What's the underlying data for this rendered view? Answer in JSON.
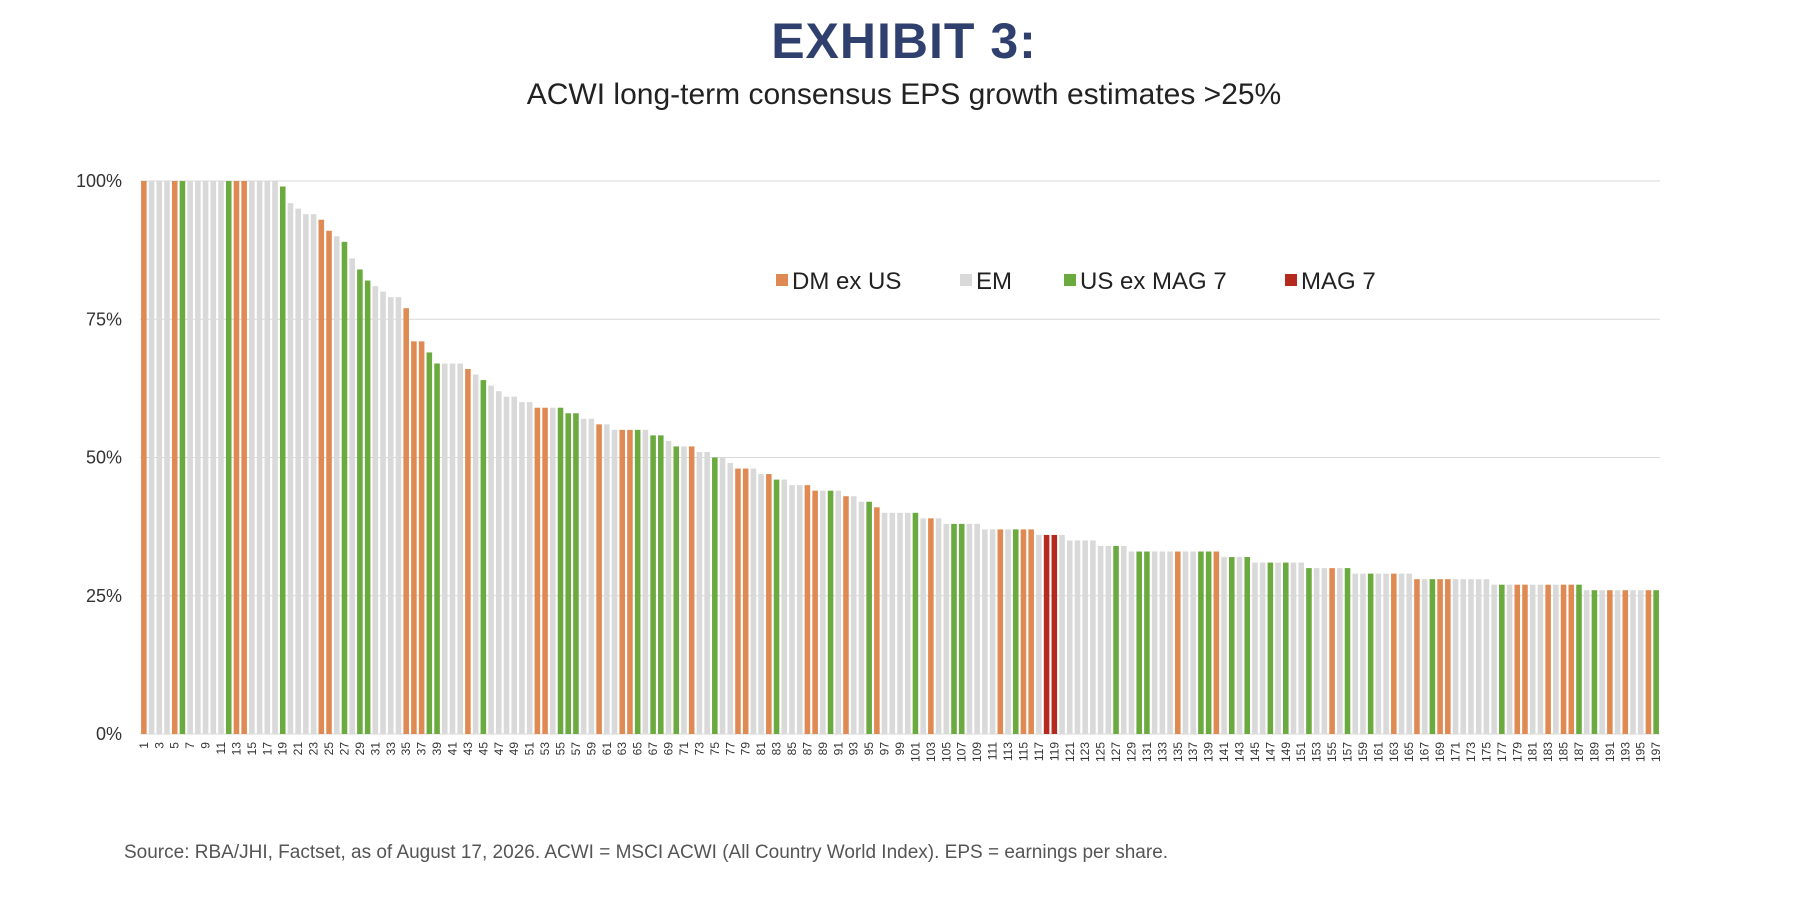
{
  "exhibit_title": "EXHIBIT 3:",
  "subtitle": "ACWI long-term consensus EPS growth estimates >25%",
  "source": "Source: RBA/JHI, Factset, as of August 17, 2026. ACWI = MSCI ACWI (All Country World Index). EPS = earnings per share.",
  "colors": {
    "DM ex US": "#e08a53",
    "EM": "#d9d9d9",
    "US ex MAG 7": "#6aaa3e",
    "MAG 7": "#b52a1e",
    "gridline": "#d9d9d9"
  },
  "chart_data": {
    "type": "bar",
    "title": "ACWI long-term consensus EPS growth estimates >25%",
    "xlabel": "",
    "ylabel": "",
    "ylim": [
      0,
      100
    ],
    "y_ticks": [
      "0%",
      "25%",
      "50%",
      "75%",
      "100%"
    ],
    "y_tick_values": [
      0,
      25,
      50,
      75,
      100
    ],
    "legend_placement": "top-center inside plot",
    "legend": [
      "DM ex US",
      "EM",
      "US ex MAG 7",
      "MAG 7"
    ],
    "x_tick_labels": [
      1,
      3,
      5,
      7,
      9,
      11,
      13,
      15,
      17,
      19,
      21,
      23,
      25,
      27,
      29,
      31,
      33,
      35,
      37,
      39,
      41,
      43,
      45,
      47,
      49,
      51,
      53,
      55,
      57,
      59,
      61,
      63,
      65,
      67,
      69,
      71,
      73,
      75,
      77,
      79,
      81,
      83,
      85,
      87,
      89,
      91,
      93,
      95,
      97,
      99,
      101,
      103,
      105,
      107,
      109,
      111,
      113,
      115,
      117,
      119,
      121,
      123,
      125,
      127,
      129,
      131,
      133,
      135,
      137,
      139,
      141,
      143,
      145,
      147,
      149,
      151,
      153,
      155,
      157,
      159,
      161,
      163,
      165,
      167,
      169,
      171,
      173,
      175,
      177,
      179,
      181,
      183,
      185,
      187,
      189,
      191,
      193,
      195,
      197
    ],
    "categories": [
      1,
      2,
      3,
      4,
      5,
      6,
      7,
      8,
      9,
      10,
      11,
      12,
      13,
      14,
      15,
      16,
      17,
      18,
      19,
      20,
      21,
      22,
      23,
      24,
      25,
      26,
      27,
      28,
      29,
      30,
      31,
      32,
      33,
      34,
      35,
      36,
      37,
      38,
      39,
      40,
      41,
      42,
      43,
      44,
      45,
      46,
      47,
      48,
      49,
      50,
      51,
      52,
      53,
      54,
      55,
      56,
      57,
      58,
      59,
      60,
      61,
      62,
      63,
      64,
      65,
      66,
      67,
      68,
      69,
      70,
      71,
      72,
      73,
      74,
      75,
      76,
      77,
      78,
      79,
      80,
      81,
      82,
      83,
      84,
      85,
      86,
      87,
      88,
      89,
      90,
      91,
      92,
      93,
      94,
      95,
      96,
      97,
      98,
      99,
      100,
      101,
      102,
      103,
      104,
      105,
      106,
      107,
      108,
      109,
      110,
      111,
      112,
      113,
      114,
      115,
      116,
      117,
      118,
      119,
      120,
      121,
      122,
      123,
      124,
      125,
      126,
      127,
      128,
      129,
      130,
      131,
      132,
      133,
      134,
      135,
      136,
      137,
      138,
      139,
      140,
      141,
      142,
      143,
      144,
      145,
      146,
      147,
      148,
      149,
      150,
      151,
      152,
      153,
      154,
      155,
      156,
      157,
      158,
      159,
      160,
      161,
      162,
      163,
      164,
      165,
      166,
      167,
      168,
      169,
      170,
      171,
      172,
      173,
      174,
      175,
      176,
      177,
      178,
      179,
      180,
      181,
      182,
      183,
      184,
      185,
      186,
      187,
      188,
      189,
      190,
      191,
      192,
      193,
      194,
      195,
      196,
      197
    ],
    "values": [
      100,
      100,
      100,
      100,
      100,
      100,
      100,
      100,
      100,
      100,
      100,
      100,
      100,
      100,
      100,
      100,
      100,
      100,
      99,
      96,
      95,
      94,
      94,
      93,
      91,
      90,
      89,
      86,
      84,
      82,
      81,
      80,
      79,
      79,
      77,
      71,
      71,
      69,
      67,
      67,
      67,
      67,
      66,
      65,
      64,
      63,
      62,
      61,
      61,
      60,
      60,
      59,
      59,
      59,
      59,
      58,
      58,
      57,
      57,
      56,
      56,
      55,
      55,
      55,
      55,
      55,
      54,
      54,
      53,
      52,
      52,
      52,
      51,
      51,
      50,
      50,
      49,
      48,
      48,
      48,
      47,
      47,
      46,
      46,
      45,
      45,
      45,
      44,
      44,
      44,
      44,
      43,
      43,
      42,
      42,
      41,
      40,
      40,
      40,
      40,
      40,
      39,
      39,
      39,
      38,
      38,
      38,
      38,
      38,
      37,
      37,
      37,
      37,
      37,
      37,
      37,
      36,
      36,
      36,
      36,
      35,
      35,
      35,
      35,
      34,
      34,
      34,
      34,
      33,
      33,
      33,
      33,
      33,
      33,
      33,
      33,
      33,
      33,
      33,
      33,
      32,
      32,
      32,
      32,
      31,
      31,
      31,
      31,
      31,
      31,
      31,
      30,
      30,
      30,
      30,
      30,
      30,
      29,
      29,
      29,
      29,
      29,
      29,
      29,
      29,
      28,
      28,
      28,
      28,
      28,
      28,
      28,
      28,
      28,
      28,
      27,
      27,
      27,
      27,
      27,
      27,
      27,
      27,
      27,
      27,
      27,
      27,
      26,
      26,
      26,
      26,
      26,
      26,
      26,
      26,
      26,
      26
    ],
    "groups": [
      "DM ex US",
      "EM",
      "EM",
      "EM",
      "DM ex US",
      "US ex MAG 7",
      "EM",
      "EM",
      "EM",
      "EM",
      "EM",
      "US ex MAG 7",
      "DM ex US",
      "DM ex US",
      "EM",
      "EM",
      "EM",
      "EM",
      "US ex MAG 7",
      "EM",
      "EM",
      "EM",
      "EM",
      "DM ex US",
      "DM ex US",
      "EM",
      "US ex MAG 7",
      "EM",
      "US ex MAG 7",
      "US ex MAG 7",
      "EM",
      "EM",
      "EM",
      "EM",
      "DM ex US",
      "DM ex US",
      "DM ex US",
      "US ex MAG 7",
      "US ex MAG 7",
      "EM",
      "EM",
      "EM",
      "DM ex US",
      "EM",
      "US ex MAG 7",
      "EM",
      "EM",
      "EM",
      "EM",
      "EM",
      "EM",
      "DM ex US",
      "DM ex US",
      "EM",
      "US ex MAG 7",
      "US ex MAG 7",
      "US ex MAG 7",
      "EM",
      "EM",
      "DM ex US",
      "EM",
      "EM",
      "DM ex US",
      "DM ex US",
      "US ex MAG 7",
      "EM",
      "US ex MAG 7",
      "US ex MAG 7",
      "EM",
      "US ex MAG 7",
      "EM",
      "DM ex US",
      "EM",
      "EM",
      "US ex MAG 7",
      "EM",
      "EM",
      "DM ex US",
      "DM ex US",
      "EM",
      "EM",
      "DM ex US",
      "US ex MAG 7",
      "EM",
      "EM",
      "EM",
      "DM ex US",
      "DM ex US",
      "EM",
      "US ex MAG 7",
      "EM",
      "DM ex US",
      "EM",
      "EM",
      "US ex MAG 7",
      "DM ex US",
      "EM",
      "EM",
      "EM",
      "EM",
      "US ex MAG 7",
      "EM",
      "DM ex US",
      "EM",
      "EM",
      "US ex MAG 7",
      "US ex MAG 7",
      "EM",
      "EM",
      "EM",
      "EM",
      "DM ex US",
      "EM",
      "US ex MAG 7",
      "DM ex US",
      "DM ex US",
      "EM",
      "MAG 7",
      "MAG 7",
      "EM",
      "EM",
      "EM",
      "EM",
      "EM",
      "EM",
      "EM",
      "US ex MAG 7",
      "EM",
      "EM",
      "US ex MAG 7",
      "US ex MAG 7",
      "EM",
      "EM",
      "EM",
      "DM ex US",
      "EM",
      "EM",
      "US ex MAG 7",
      "US ex MAG 7",
      "DM ex US",
      "EM",
      "US ex MAG 7",
      "EM",
      "US ex MAG 7",
      "EM",
      "EM",
      "US ex MAG 7",
      "EM",
      "US ex MAG 7",
      "EM",
      "EM",
      "US ex MAG 7",
      "EM",
      "EM",
      "DM ex US",
      "EM",
      "US ex MAG 7",
      "EM",
      "EM",
      "US ex MAG 7",
      "EM",
      "EM",
      "DM ex US",
      "EM",
      "EM",
      "DM ex US",
      "EM",
      "US ex MAG 7",
      "DM ex US",
      "DM ex US",
      "EM",
      "EM",
      "EM",
      "EM",
      "EM",
      "EM",
      "US ex MAG 7",
      "EM",
      "DM ex US",
      "DM ex US",
      "EM",
      "EM",
      "DM ex US",
      "EM",
      "DM ex US",
      "DM ex US",
      "US ex MAG 7",
      "EM",
      "US ex MAG 7",
      "EM",
      "DM ex US",
      "EM",
      "DM ex US",
      "EM",
      "EM",
      "DM ex US",
      "US ex MAG 7",
      "US ex MAG 7"
    ],
    "grid": true
  }
}
